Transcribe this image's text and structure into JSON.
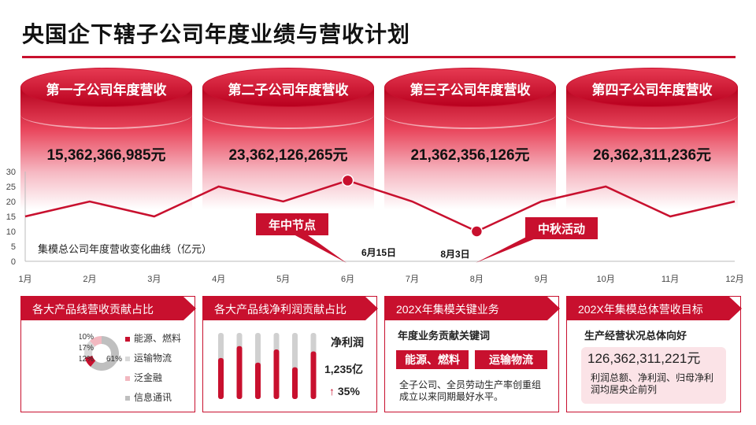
{
  "page": {
    "title": "央国企下辖子公司年度业绩与营收计划"
  },
  "subsidiaries": [
    {
      "label": "第一子公司年度营收",
      "value": "15,362,366,985元"
    },
    {
      "label": "第二子公司年度营收",
      "value": "23,362,126,265元"
    },
    {
      "label": "第三子公司年度营收",
      "value": "21,362,356,126元"
    },
    {
      "label": "第四子公司年度营收",
      "value": "26,362,311,236元"
    }
  ],
  "chart_data": {
    "type": "line",
    "title": "集模总公司年度营收变化曲线（亿元）",
    "categories": [
      "1月",
      "2月",
      "3月",
      "4月",
      "5月",
      "6月",
      "7月",
      "8月",
      "9月",
      "10月",
      "11月",
      "12月"
    ],
    "x": [
      1,
      1.5,
      2,
      2.5,
      3,
      3.5,
      4,
      4.5,
      5,
      5.5,
      6,
      6.5,
      7,
      7.5,
      8,
      8.5,
      9,
      9.5,
      10,
      10.5,
      11,
      11.5,
      12
    ],
    "values": [
      15,
      17.5,
      20,
      17.5,
      15,
      20,
      25,
      22.5,
      20,
      23.5,
      27,
      23.5,
      20,
      15,
      10,
      15,
      20,
      22.5,
      25,
      20,
      15,
      17.5,
      20
    ],
    "ylim": [
      0,
      30
    ],
    "yticks": [
      0,
      5,
      10,
      15,
      20,
      25,
      30
    ],
    "highlight_points": [
      {
        "x": 6.0,
        "y": 27
      },
      {
        "x": 8.0,
        "y": 10
      }
    ],
    "annotations": [
      {
        "label": "年中节点",
        "date": "6月15日"
      },
      {
        "label": "中秋活动",
        "date": "8月3日"
      }
    ]
  },
  "panel1": {
    "title": "各大产品线营收贡献占比",
    "pie_labels": [
      "10%",
      "17%",
      "12%",
      "61%"
    ],
    "pie_values": [
      10,
      17,
      12,
      61
    ],
    "legend": [
      "能源、燃料",
      "运输物流",
      "泛金融",
      "信息通讯"
    ],
    "colors": {
      "energy": "#c8102e",
      "transport": "#d9d9d9",
      "finance": "#f2b8c0",
      "telecom": "#bfbfbf"
    }
  },
  "panel2": {
    "title": "各大产品线净利润贡献占比",
    "bars": [
      0.62,
      0.8,
      0.55,
      0.75,
      0.48,
      0.72
    ],
    "metric_label": "净利润",
    "metric_value": "1,235亿",
    "growth": "35%"
  },
  "panel3": {
    "title": "202X年集模关键业务",
    "subtitle": "年度业务贡献关键词",
    "keywords": [
      "能源、燃料",
      "运输物流"
    ],
    "desc_line1": "全子公司、全员劳动生产率创重组",
    "desc_line2": "成立以来同期最好水平。"
  },
  "panel4": {
    "title": "202X年集模总体营收目标",
    "subtitle": "生产经营状况总体向好",
    "value": "126,362,311,221元",
    "desc_line1": "利润总额、净利润、归母净利",
    "desc_line2": "润均居央企前列"
  },
  "accent": "#c8102e"
}
